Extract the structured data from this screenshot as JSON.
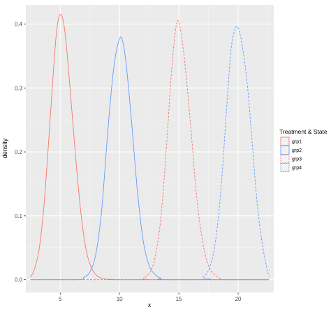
{
  "chart_data": {
    "type": "line",
    "title": "",
    "xlabel": "x",
    "ylabel": "density",
    "xlim": [
      2.1,
      23.0
    ],
    "ylim": [
      -0.02,
      0.43
    ],
    "x_ticks": [
      5,
      10,
      15,
      20
    ],
    "x_tick_labels": [
      "5",
      "10",
      "15",
      "20"
    ],
    "y_ticks": [
      0.0,
      0.1,
      0.2,
      0.3,
      0.4
    ],
    "y_tick_labels": [
      "0.0",
      "0.1",
      "0.2",
      "0.3",
      "0.4"
    ],
    "grid": true,
    "panel_background": "#ebebeb",
    "legend": {
      "title": "Treatment & State",
      "position": "right"
    },
    "series": [
      {
        "name": "grp1",
        "color": "#f8766d",
        "linetype": "solid",
        "x": [
          2.5,
          2.8,
          3.2,
          3.6,
          4.0,
          4.4,
          4.7,
          5.0,
          5.3,
          5.6,
          6.0,
          6.4,
          6.8,
          7.2,
          7.6,
          8.0,
          8.4,
          8.8,
          9.2,
          9.6,
          10.0,
          22.6
        ],
        "y": [
          0.004,
          0.015,
          0.045,
          0.11,
          0.21,
          0.32,
          0.39,
          0.415,
          0.4,
          0.35,
          0.26,
          0.17,
          0.095,
          0.045,
          0.02,
          0.008,
          0.003,
          0.001,
          0.0005,
          0.0002,
          0.0,
          0.0
        ]
      },
      {
        "name": "grp2",
        "color": "#619cff",
        "linetype": "solid",
        "x": [
          2.5,
          6.5,
          7.0,
          7.5,
          8.0,
          8.5,
          9.0,
          9.5,
          10.0,
          10.3,
          10.6,
          11.0,
          11.5,
          12.0,
          12.5,
          13.0,
          13.5,
          14.0,
          22.6
        ],
        "y": [
          0.0,
          0.0,
          0.004,
          0.012,
          0.04,
          0.11,
          0.23,
          0.33,
          0.377,
          0.37,
          0.33,
          0.25,
          0.14,
          0.06,
          0.022,
          0.008,
          0.002,
          0.0,
          0.0
        ]
      },
      {
        "name": "grp3",
        "color": "#f8766d",
        "linetype": "dashed",
        "x": [
          2.5,
          11.5,
          12.0,
          12.5,
          13.0,
          13.5,
          14.0,
          14.4,
          14.8,
          15.1,
          15.5,
          16.0,
          16.5,
          17.0,
          17.5,
          18.0,
          18.5,
          19.0,
          22.6
        ],
        "y": [
          0.0,
          0.0,
          0.003,
          0.01,
          0.035,
          0.1,
          0.22,
          0.33,
          0.4,
          0.395,
          0.34,
          0.24,
          0.13,
          0.06,
          0.022,
          0.008,
          0.002,
          0.0,
          0.0
        ]
      },
      {
        "name": "grp4",
        "color": "#619cff",
        "linetype": "dashed",
        "x": [
          2.5,
          16.5,
          17.0,
          17.5,
          18.0,
          18.5,
          19.0,
          19.4,
          19.8,
          20.1,
          20.4,
          20.8,
          21.2,
          21.6,
          22.0,
          22.4,
          22.6
        ],
        "y": [
          0.0,
          0.0,
          0.004,
          0.015,
          0.05,
          0.13,
          0.26,
          0.36,
          0.395,
          0.388,
          0.36,
          0.3,
          0.21,
          0.12,
          0.06,
          0.02,
          0.005
        ]
      }
    ]
  }
}
